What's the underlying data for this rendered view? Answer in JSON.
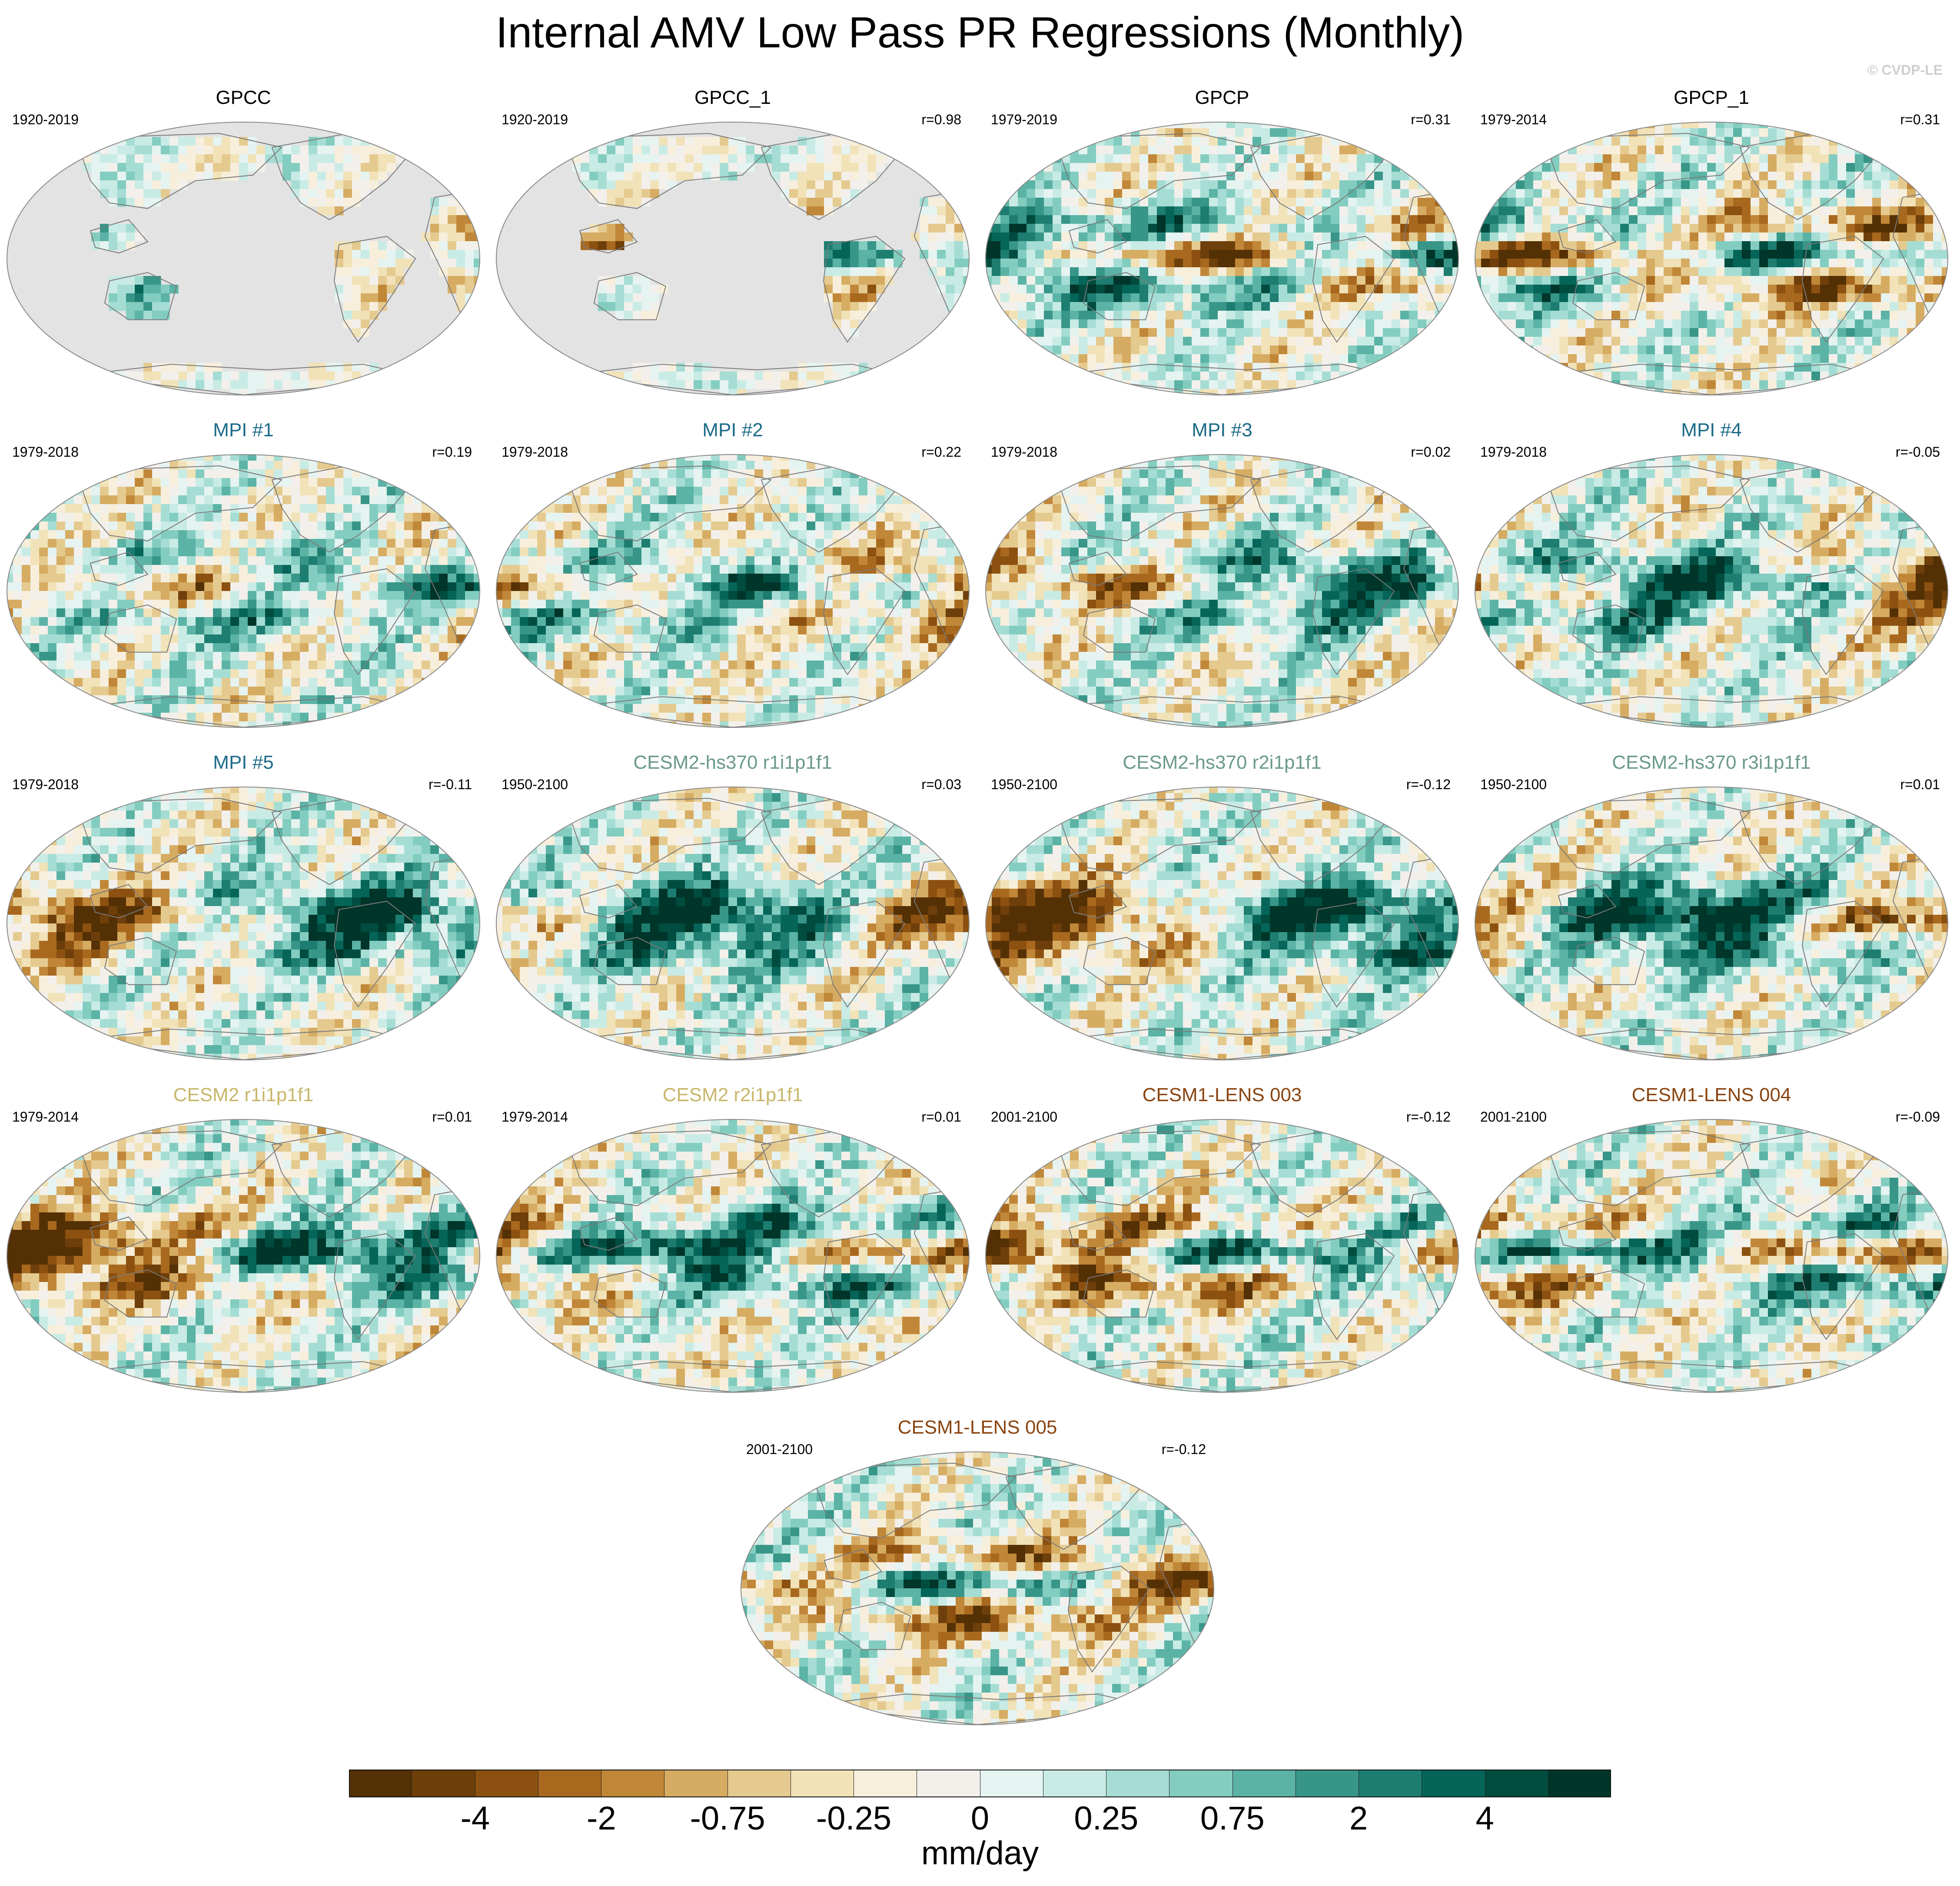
{
  "title": "Internal AMV Low Pass PR Regressions (Monthly)",
  "watermark": "© CVDP-LE",
  "colors": {
    "scale": [
      "#543005",
      "#6e3f0a",
      "#8c5110",
      "#a8691f",
      "#c18738",
      "#d6ac62",
      "#e5ca8f",
      "#f1e2b8",
      "#f7efdc",
      "#f3f0ec",
      "#e5f3f1",
      "#c9ebe5",
      "#a5ddd4",
      "#83cdc0",
      "#5bb3a6",
      "#389688",
      "#1d7d70",
      "#056559",
      "#004d40",
      "#003529"
    ],
    "missing": "#e3e3e3",
    "coast": "#7a7a7a",
    "title_obs": "#000000",
    "title_mpi": "#1b6a87",
    "title_cesm2hs": "#6a9a86",
    "title_cesm2": "#c8b66a",
    "title_cesm1": "#8a4410"
  },
  "panels": [
    {
      "title": "GPCC",
      "group": "obs",
      "period": "1920-2019",
      "r": "",
      "land_only": true
    },
    {
      "title": "GPCC_1",
      "group": "obs",
      "period": "1920-2019",
      "r": "r=0.98",
      "land_only": true
    },
    {
      "title": "GPCP",
      "group": "obs",
      "period": "1979-2019",
      "r": "r=0.31",
      "land_only": false
    },
    {
      "title": "GPCP_1",
      "group": "obs",
      "period": "1979-2014",
      "r": "r=0.31",
      "land_only": false
    },
    {
      "title": "MPI #1",
      "group": "mpi",
      "period": "1979-2018",
      "r": "r=0.19",
      "land_only": false
    },
    {
      "title": "MPI #2",
      "group": "mpi",
      "period": "1979-2018",
      "r": "r=0.22",
      "land_only": false
    },
    {
      "title": "MPI #3",
      "group": "mpi",
      "period": "1979-2018",
      "r": "r=0.02",
      "land_only": false
    },
    {
      "title": "MPI #4",
      "group": "mpi",
      "period": "1979-2018",
      "r": "r=-0.05",
      "land_only": false
    },
    {
      "title": "MPI #5",
      "group": "mpi",
      "period": "1979-2018",
      "r": "r=-0.11",
      "land_only": false
    },
    {
      "title": "CESM2-hs370 r1i1p1f1",
      "group": "cesm2hs",
      "period": "1950-2100",
      "r": "r=0.03",
      "land_only": false
    },
    {
      "title": "CESM2-hs370 r2i1p1f1",
      "group": "cesm2hs",
      "period": "1950-2100",
      "r": "r=-0.12",
      "land_only": false
    },
    {
      "title": "CESM2-hs370 r3i1p1f1",
      "group": "cesm2hs",
      "period": "1950-2100",
      "r": "r=0.01",
      "land_only": false
    },
    {
      "title": "CESM2 r1i1p1f1",
      "group": "cesm2",
      "period": "1979-2014",
      "r": "r=0.01",
      "land_only": false
    },
    {
      "title": "CESM2 r2i1p1f1",
      "group": "cesm2",
      "period": "1979-2014",
      "r": "r=0.01",
      "land_only": false
    },
    {
      "title": "CESM1-LENS 003",
      "group": "cesm1",
      "period": "2001-2100",
      "r": "r=-0.12",
      "land_only": false
    },
    {
      "title": "CESM1-LENS 004",
      "group": "cesm1",
      "period": "2001-2100",
      "r": "r=-0.09",
      "land_only": false
    },
    {
      "title": "CESM1-LENS 005",
      "group": "cesm1",
      "period": "2001-2100",
      "r": "r=-0.12",
      "land_only": false
    }
  ],
  "colorbar": {
    "tick_labels": [
      "-4",
      "-2",
      "-0.75",
      "-0.25",
      "0",
      "0.25",
      "0.75",
      "2",
      "4"
    ],
    "tick_bins": [
      2,
      4,
      6,
      8,
      10,
      12,
      14,
      16,
      18
    ],
    "units": "mm/day"
  }
}
